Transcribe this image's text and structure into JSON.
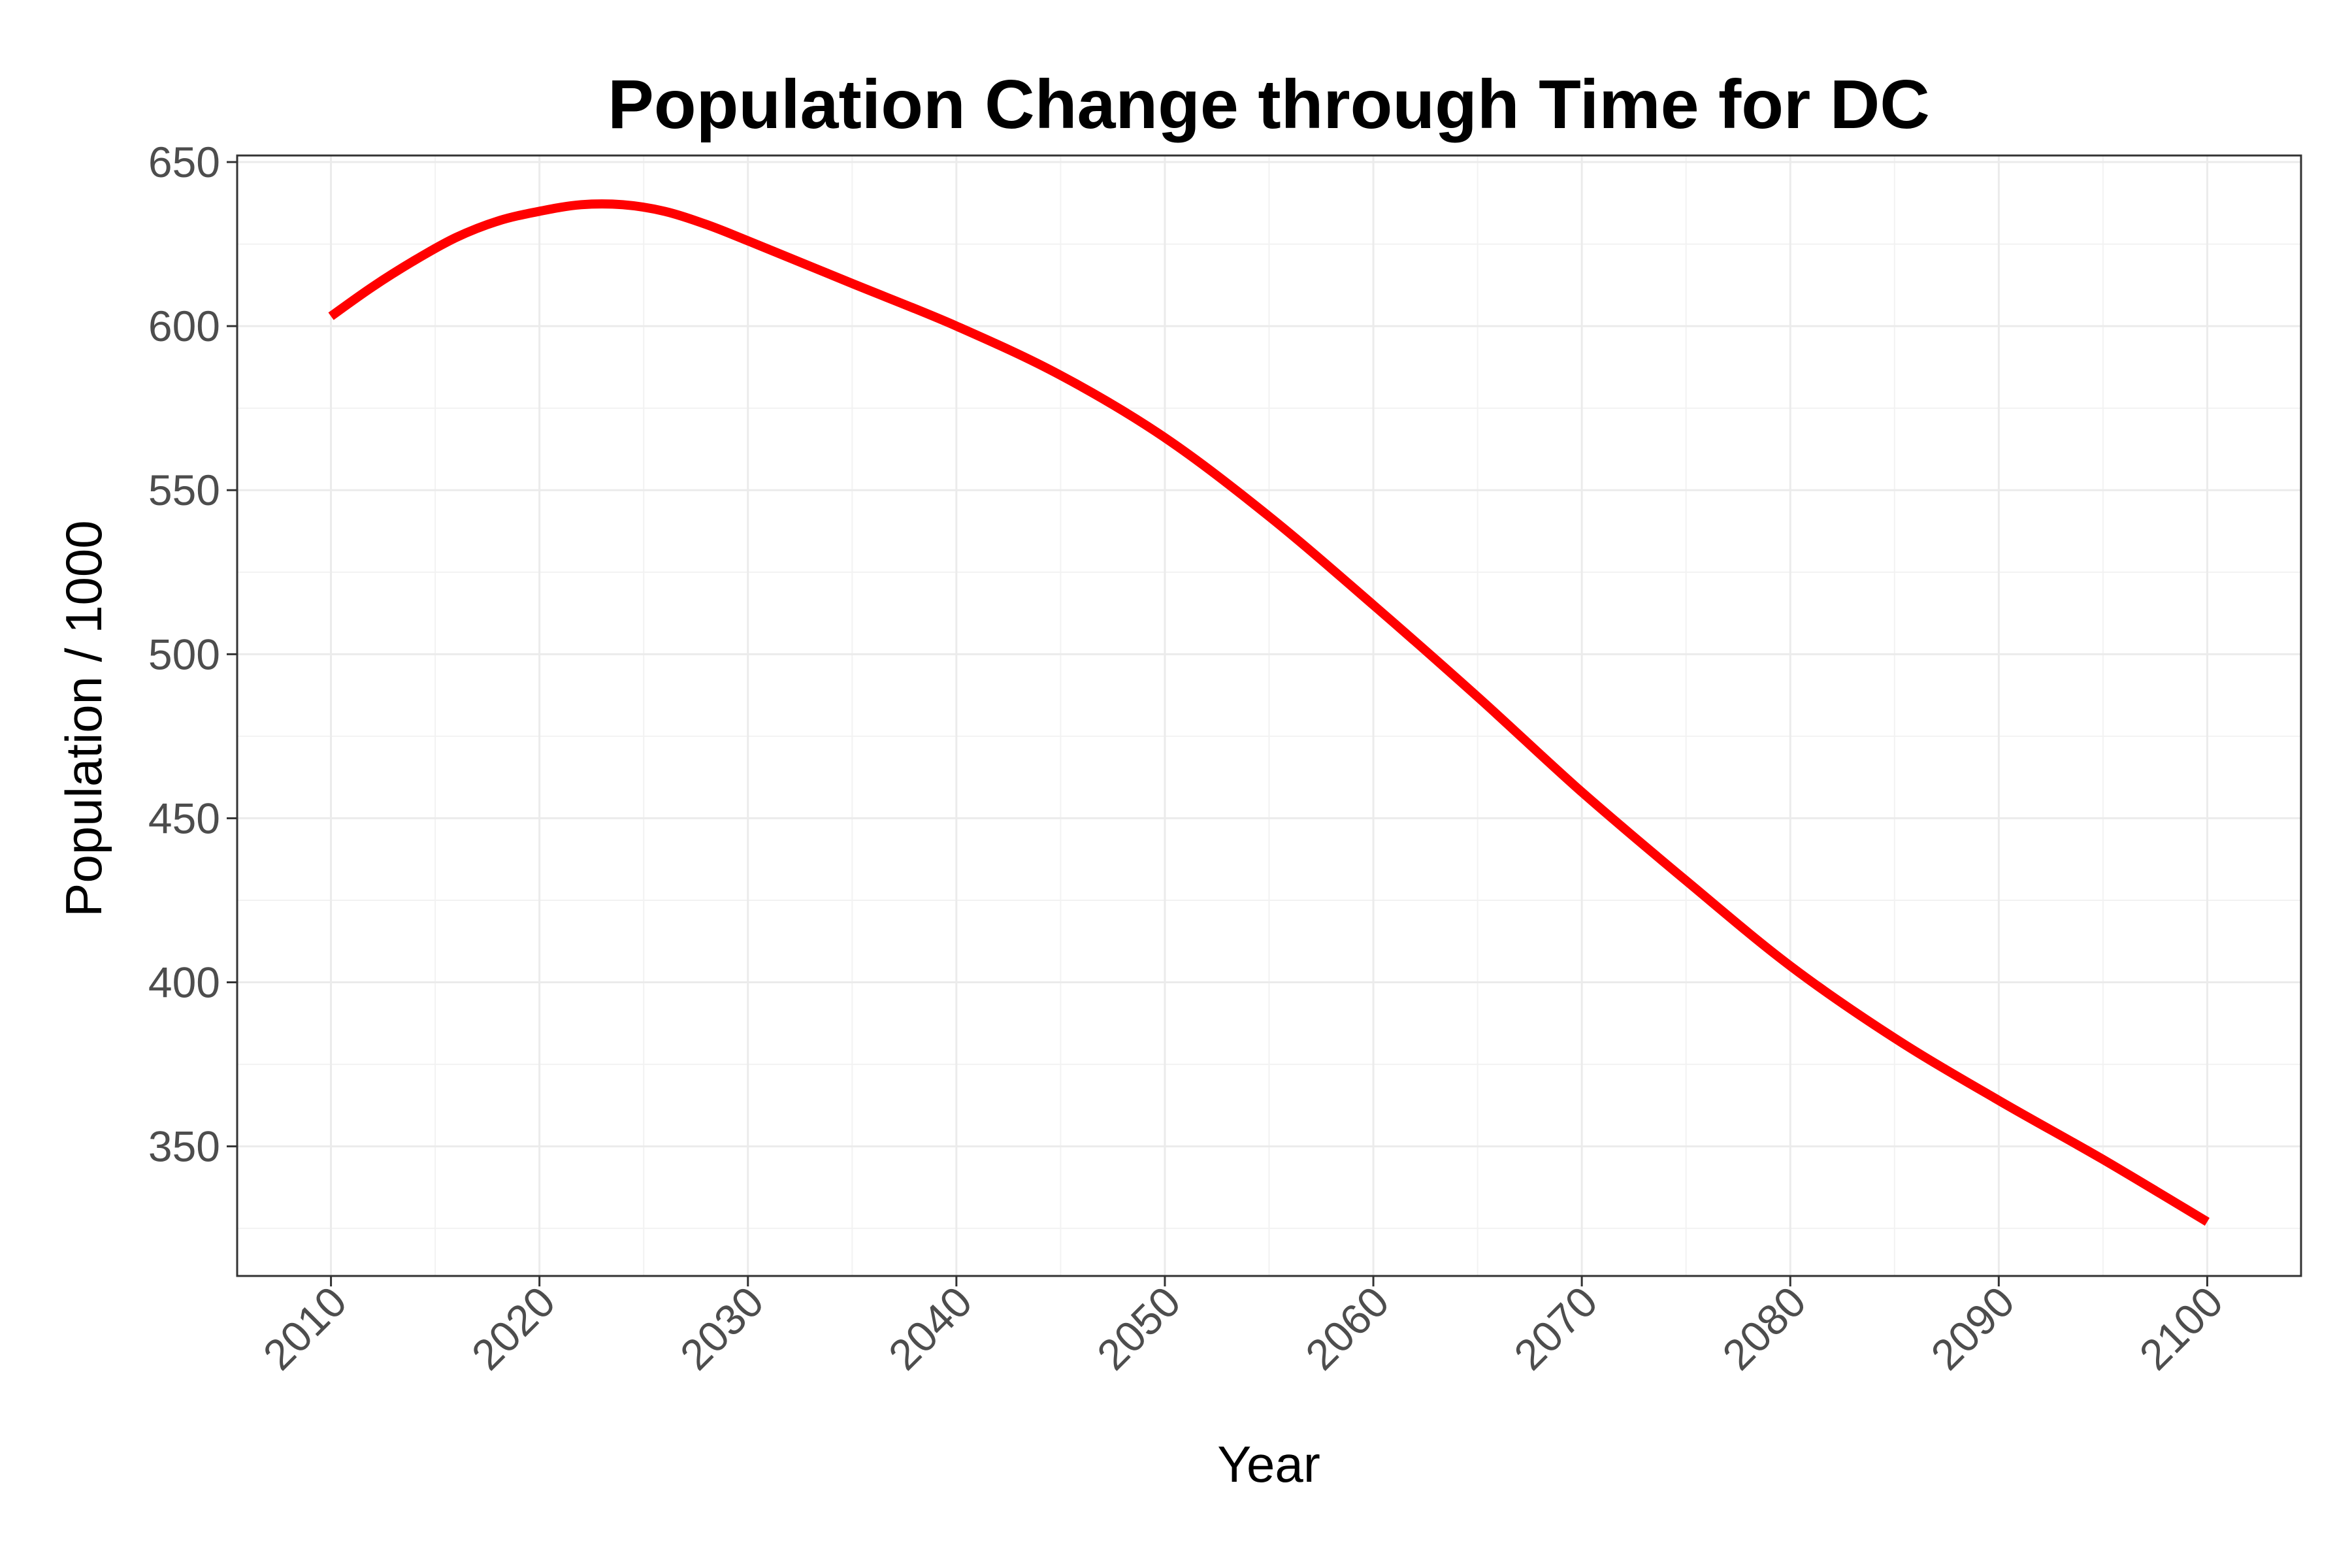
{
  "chart_data": {
    "type": "line",
    "title": "Population Change through Time for DC",
    "xlabel": "Year",
    "ylabel": "Population / 1000",
    "xlim": [
      2005.5,
      2104.5
    ],
    "ylim": [
      310.5,
      652
    ],
    "x_ticks": [
      2010,
      2020,
      2030,
      2040,
      2050,
      2060,
      2070,
      2080,
      2090,
      2100
    ],
    "x_tick_labels": [
      "2010",
      "2020",
      "2030",
      "2040",
      "2050",
      "2060",
      "2070",
      "2080",
      "2090",
      "2100"
    ],
    "y_ticks": [
      350,
      400,
      450,
      500,
      550,
      600,
      650
    ],
    "y_tick_labels": [
      "350",
      "400",
      "450",
      "500",
      "550",
      "600",
      "650"
    ],
    "grid": true,
    "legend": "none",
    "series": [
      {
        "color": "#ff0000",
        "x": [
          2010,
          2012,
          2014,
          2016,
          2018,
          2020,
          2022,
          2024,
          2026,
          2028,
          2030,
          2035,
          2040,
          2045,
          2050,
          2055,
          2060,
          2065,
          2070,
          2075,
          2080,
          2085,
          2090,
          2095,
          2100
        ],
        "y": [
          603,
          612,
          620,
          627,
          632,
          635,
          637,
          637,
          635,
          631,
          626,
          613,
          600,
          585,
          566,
          542,
          515,
          487,
          458,
          431,
          405,
          383,
          364,
          346,
          327
        ]
      }
    ]
  }
}
